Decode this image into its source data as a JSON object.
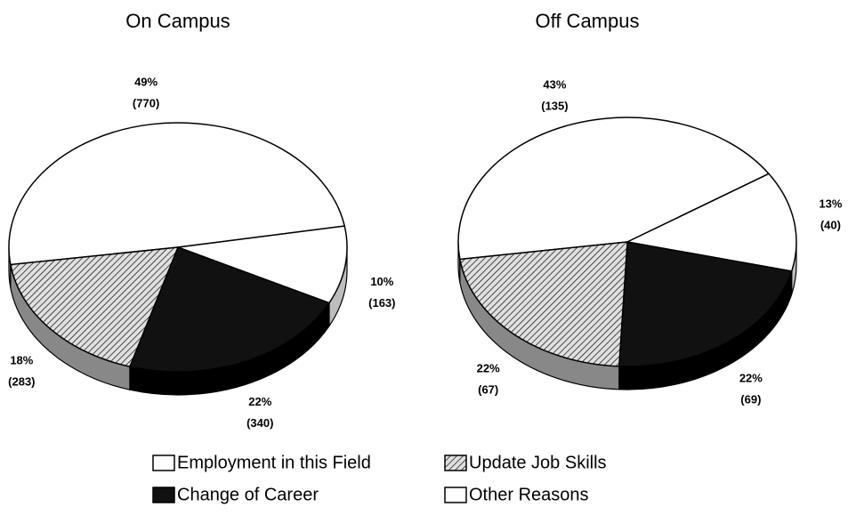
{
  "chart_data": [
    {
      "type": "pie",
      "title": "On Campus",
      "categories": [
        "Employment in this Field",
        "Other Reasons",
        "Change of Career",
        "Update Job Skills"
      ],
      "values": [
        49,
        10,
        22,
        18
      ],
      "value_labels": [
        "49%",
        "10%",
        "22%",
        "18%"
      ],
      "counts": [
        770,
        163,
        340,
        283
      ],
      "count_labels": [
        "(770)",
        "(163)",
        "(340)",
        "(283)"
      ],
      "colors": [
        "#ffffff",
        "#ffffff",
        "#111111",
        "#d8d8d8"
      ],
      "hatched": [
        false,
        false,
        false,
        true
      ]
    },
    {
      "type": "pie",
      "title": "Off Campus",
      "categories": [
        "Employment in this Field",
        "Other Reasons",
        "Change of Career",
        "Update Job Skills"
      ],
      "values": [
        43,
        13,
        22,
        22
      ],
      "value_labels": [
        "43%",
        "13%",
        "22%",
        "22%"
      ],
      "counts": [
        135,
        40,
        69,
        67
      ],
      "count_labels": [
        "(135)",
        "(40)",
        "(69)",
        "(67)"
      ],
      "colors": [
        "#ffffff",
        "#ffffff",
        "#111111",
        "#d8d8d8"
      ],
      "hatched": [
        false,
        false,
        false,
        true
      ]
    }
  ]
}
